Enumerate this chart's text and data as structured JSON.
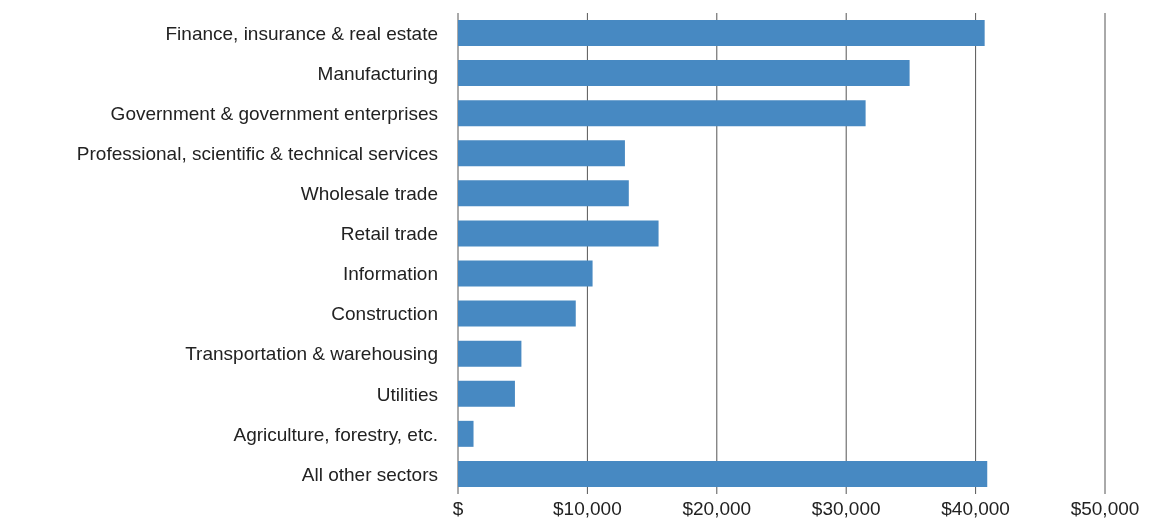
{
  "chart_data": {
    "type": "bar",
    "orientation": "horizontal",
    "categories": [
      "Finance, insurance & real estate",
      "Manufacturing",
      "Government & government enterprises",
      "Professional, scientific & technical services",
      "Wholesale trade",
      "Retail trade",
      "Information",
      "Construction",
      "Transportation & warehousing",
      "Utilities",
      "Agriculture, forestry, etc.",
      "All other sectors"
    ],
    "values": [
      40700,
      34900,
      31500,
      12900,
      13200,
      15500,
      10400,
      9100,
      4900,
      4400,
      1200,
      40900
    ],
    "color": "#4789c2",
    "xlim": [
      0,
      50000
    ],
    "xticks": [
      {
        "value": 0,
        "label": "$"
      },
      {
        "value": 10000,
        "label": "$10,000"
      },
      {
        "value": 20000,
        "label": "$20,000"
      },
      {
        "value": 30000,
        "label": "$30,000"
      },
      {
        "value": 40000,
        "label": "$40,000"
      },
      {
        "value": 50000,
        "label": "$50,000"
      }
    ],
    "grid": "x"
  }
}
